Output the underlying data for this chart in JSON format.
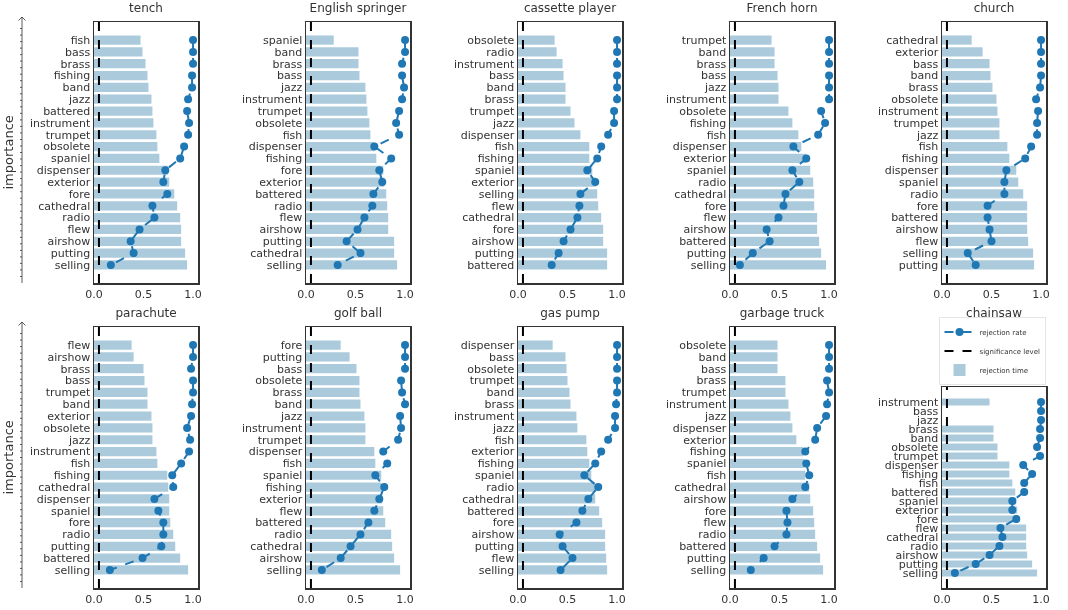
{
  "chart_data": [
    {
      "type": "bar",
      "orientation": "horizontal",
      "title": "tench",
      "ylabel": "importance",
      "xlim": [
        0,
        1.05
      ],
      "xticks": [
        {
          "value": 0,
          "label": "0.0"
        },
        {
          "value": 0.5,
          "label": "0.5"
        },
        {
          "value": 1,
          "label": "1.0"
        }
      ],
      "categories": [
        "fish",
        "bass",
        "brass",
        "fishing",
        "band",
        "jazz",
        "battered",
        "instrument",
        "trumpet",
        "obsolete",
        "spaniel",
        "dispenser",
        "exterior",
        "fore",
        "cathedral",
        "radio",
        "flew",
        "airshow",
        "putting",
        "selling"
      ],
      "ref_lines": [
        {
          "axis": "x",
          "value": 0.05,
          "color": "#000000",
          "line_style": "dashed"
        }
      ],
      "series": [
        {
          "color": "#abcbdd",
          "values": [
            0.47,
            0.49,
            0.52,
            0.54,
            0.55,
            0.58,
            0.59,
            0.6,
            0.63,
            0.64,
            0.66,
            0.75,
            0.76,
            0.81,
            0.84,
            0.87,
            0.88,
            0.88,
            0.92,
            0.94
          ]
        },
        {
          "type": "line",
          "color": "#1f77b4",
          "marker": "circle",
          "line_style": "dashed",
          "values": [
            1.0,
            1.0,
            1.0,
            0.99,
            0.99,
            0.95,
            0.94,
            0.96,
            0.95,
            0.91,
            0.87,
            0.72,
            0.7,
            0.74,
            0.59,
            0.61,
            0.46,
            0.37,
            0.4,
            0.17
          ]
        }
      ]
    },
    {
      "type": "bar",
      "orientation": "horizontal",
      "title": "English springer",
      "xlim": [
        0,
        1.05
      ],
      "xticks": [
        {
          "value": 0,
          "label": "0.0"
        },
        {
          "value": 0.5,
          "label": "0.5"
        },
        {
          "value": 1,
          "label": "1.0"
        }
      ],
      "categories": [
        "spaniel",
        "band",
        "brass",
        "bass",
        "jazz",
        "instrument",
        "trumpet",
        "obsolete",
        "fish",
        "dispenser",
        "fishing",
        "fore",
        "exterior",
        "battered",
        "radio",
        "flew",
        "airshow",
        "putting",
        "cathedral",
        "selling"
      ],
      "ref_lines": [
        {
          "axis": "x",
          "value": 0.05,
          "color": "#000000",
          "line_style": "dashed"
        }
      ],
      "series": [
        {
          "color": "#abcbdd",
          "values": [
            0.28,
            0.53,
            0.53,
            0.54,
            0.6,
            0.61,
            0.62,
            0.64,
            0.65,
            0.69,
            0.71,
            0.78,
            0.79,
            0.81,
            0.82,
            0.83,
            0.83,
            0.89,
            0.89,
            0.92
          ]
        },
        {
          "type": "line",
          "color": "#1f77b4",
          "marker": "circle",
          "line_style": "dashed",
          "values": [
            1.0,
            1.0,
            0.97,
            0.97,
            0.99,
            0.97,
            0.94,
            0.91,
            0.94,
            0.69,
            0.86,
            0.74,
            0.77,
            0.68,
            0.67,
            0.59,
            0.52,
            0.41,
            0.55,
            0.32
          ]
        }
      ]
    },
    {
      "type": "bar",
      "orientation": "horizontal",
      "title": "cassette player",
      "xlim": [
        0,
        1.05
      ],
      "xticks": [
        {
          "value": 0,
          "label": "0.0"
        },
        {
          "value": 0.5,
          "label": "0.5"
        },
        {
          "value": 1,
          "label": "1.0"
        }
      ],
      "categories": [
        "obsolete",
        "radio",
        "instrument",
        "bass",
        "band",
        "brass",
        "trumpet",
        "jazz",
        "dispenser",
        "fish",
        "fishing",
        "spaniel",
        "exterior",
        "selling",
        "flew",
        "cathedral",
        "fore",
        "airshow",
        "putting",
        "battered"
      ],
      "ref_lines": [
        {
          "axis": "x",
          "value": 0.05,
          "color": "#000000",
          "line_style": "dashed"
        }
      ],
      "series": [
        {
          "color": "#abcbdd",
          "values": [
            0.37,
            0.39,
            0.45,
            0.46,
            0.48,
            0.48,
            0.53,
            0.57,
            0.63,
            0.72,
            0.72,
            0.75,
            0.79,
            0.8,
            0.81,
            0.84,
            0.86,
            0.86,
            0.9,
            0.9
          ]
        },
        {
          "type": "line",
          "color": "#1f77b4",
          "marker": "circle",
          "line_style": "dashed",
          "values": [
            1.0,
            1.0,
            1.0,
            1.0,
            1.0,
            1.0,
            0.97,
            0.97,
            0.91,
            0.84,
            0.8,
            0.7,
            0.78,
            0.63,
            0.62,
            0.6,
            0.53,
            0.46,
            0.41,
            0.34
          ]
        }
      ]
    },
    {
      "type": "bar",
      "orientation": "horizontal",
      "title": "French horn",
      "xlim": [
        0,
        1.05
      ],
      "xticks": [
        {
          "value": 0,
          "label": "0.0"
        },
        {
          "value": 0.5,
          "label": "0.5"
        },
        {
          "value": 1,
          "label": "1.0"
        }
      ],
      "categories": [
        "trumpet",
        "band",
        "brass",
        "bass",
        "jazz",
        "instrument",
        "obsolete",
        "fishing",
        "fish",
        "dispenser",
        "exterior",
        "spaniel",
        "radio",
        "cathedral",
        "fore",
        "flew",
        "airshow",
        "battered",
        "putting",
        "selling"
      ],
      "ref_lines": [
        {
          "axis": "x",
          "value": 0.05,
          "color": "#000000",
          "line_style": "dashed"
        }
      ],
      "series": [
        {
          "color": "#abcbdd",
          "values": [
            0.42,
            0.45,
            0.45,
            0.48,
            0.49,
            0.49,
            0.59,
            0.63,
            0.69,
            0.72,
            0.77,
            0.81,
            0.84,
            0.85,
            0.85,
            0.88,
            0.88,
            0.9,
            0.92,
            0.97
          ]
        },
        {
          "type": "line",
          "color": "#1f77b4",
          "marker": "circle",
          "line_style": "dashed",
          "values": [
            1.0,
            1.0,
            1.0,
            1.0,
            1.0,
            1.0,
            0.92,
            0.96,
            0.89,
            0.64,
            0.77,
            0.63,
            0.7,
            0.56,
            0.54,
            0.49,
            0.37,
            0.4,
            0.23,
            0.1
          ]
        }
      ]
    },
    {
      "type": "bar",
      "orientation": "horizontal",
      "title": "church",
      "xlim": [
        0,
        1.05
      ],
      "xticks": [
        {
          "value": 0,
          "label": "0.0"
        },
        {
          "value": 0.5,
          "label": "0.5"
        },
        {
          "value": 1,
          "label": "1.0"
        }
      ],
      "categories": [
        "cathedral",
        "exterior",
        "bass",
        "band",
        "brass",
        "obsolete",
        "instrument",
        "trumpet",
        "jazz",
        "fish",
        "fishing",
        "dispenser",
        "spaniel",
        "radio",
        "fore",
        "battered",
        "airshow",
        "flew",
        "selling",
        "putting"
      ],
      "ref_lines": [
        {
          "axis": "x",
          "value": 0.05,
          "color": "#000000",
          "line_style": "dashed"
        }
      ],
      "series": [
        {
          "color": "#abcbdd",
          "values": [
            0.3,
            0.41,
            0.48,
            0.49,
            0.51,
            0.55,
            0.56,
            0.58,
            0.58,
            0.66,
            0.68,
            0.75,
            0.77,
            0.82,
            0.86,
            0.86,
            0.86,
            0.87,
            0.92,
            0.93
          ]
        },
        {
          "type": "line",
          "color": "#1f77b4",
          "marker": "circle",
          "line_style": "dashed",
          "values": [
            1.0,
            1.0,
            1.0,
            1.0,
            0.99,
            0.95,
            0.97,
            0.96,
            0.96,
            0.9,
            0.84,
            0.65,
            0.63,
            0.63,
            0.46,
            0.46,
            0.48,
            0.5,
            0.26,
            0.34
          ]
        }
      ]
    },
    {
      "type": "bar",
      "orientation": "horizontal",
      "title": "parachute",
      "ylabel": "importance",
      "xlim": [
        0,
        1.05
      ],
      "xticks": [
        {
          "value": 0,
          "label": "0.0"
        },
        {
          "value": 0.5,
          "label": "0.5"
        },
        {
          "value": 1,
          "label": "1.0"
        }
      ],
      "categories": [
        "flew",
        "airshow",
        "brass",
        "bass",
        "trumpet",
        "band",
        "exterior",
        "obsolete",
        "jazz",
        "instrument",
        "fish",
        "fishing",
        "cathedral",
        "dispenser",
        "spaniel",
        "fore",
        "radio",
        "putting",
        "battered",
        "selling"
      ],
      "ref_lines": [
        {
          "axis": "x",
          "value": 0.05,
          "color": "#000000",
          "line_style": "dashed"
        }
      ],
      "series": [
        {
          "color": "#abcbdd",
          "values": [
            0.38,
            0.4,
            0.5,
            0.51,
            0.54,
            0.54,
            0.58,
            0.59,
            0.59,
            0.63,
            0.64,
            0.74,
            0.75,
            0.76,
            0.76,
            0.77,
            0.8,
            0.82,
            0.87,
            0.95
          ]
        },
        {
          "type": "line",
          "color": "#1f77b4",
          "marker": "circle",
          "line_style": "dashed",
          "values": [
            1.0,
            1.0,
            0.98,
            1.0,
            1.0,
            0.99,
            0.98,
            0.94,
            0.97,
            0.96,
            0.88,
            0.79,
            0.8,
            0.61,
            0.65,
            0.7,
            0.7,
            0.68,
            0.49,
            0.16
          ]
        }
      ]
    },
    {
      "type": "bar",
      "orientation": "horizontal",
      "title": "golf ball",
      "xlim": [
        0,
        1.05
      ],
      "xticks": [
        {
          "value": 0,
          "label": "0.0"
        },
        {
          "value": 0.5,
          "label": "0.5"
        },
        {
          "value": 1,
          "label": "1.0"
        }
      ],
      "categories": [
        "fore",
        "putting",
        "bass",
        "obsolete",
        "brass",
        "band",
        "jazz",
        "instrument",
        "trumpet",
        "dispenser",
        "fish",
        "spaniel",
        "fishing",
        "exterior",
        "flew",
        "battered",
        "radio",
        "cathedral",
        "airshow",
        "selling"
      ],
      "ref_lines": [
        {
          "axis": "x",
          "value": 0.05,
          "color": "#000000",
          "line_style": "dashed"
        }
      ],
      "series": [
        {
          "color": "#abcbdd",
          "values": [
            0.35,
            0.44,
            0.51,
            0.54,
            0.54,
            0.55,
            0.59,
            0.6,
            0.6,
            0.69,
            0.7,
            0.76,
            0.76,
            0.77,
            0.78,
            0.8,
            0.86,
            0.87,
            0.89,
            0.95
          ]
        },
        {
          "type": "line",
          "color": "#1f77b4",
          "marker": "circle",
          "line_style": "dashed",
          "values": [
            1.0,
            1.0,
            1.0,
            0.96,
            0.97,
            1.0,
            0.95,
            0.96,
            0.93,
            0.78,
            0.82,
            0.7,
            0.79,
            0.74,
            0.69,
            0.63,
            0.55,
            0.45,
            0.35,
            0.16
          ]
        }
      ]
    },
    {
      "type": "bar",
      "orientation": "horizontal",
      "title": "gas pump",
      "xlim": [
        0,
        1.05
      ],
      "xticks": [
        {
          "value": 0,
          "label": "0.0"
        },
        {
          "value": 0.5,
          "label": "0.5"
        },
        {
          "value": 1,
          "label": "1.0"
        }
      ],
      "categories": [
        "dispenser",
        "bass",
        "obsolete",
        "trumpet",
        "band",
        "brass",
        "instrument",
        "jazz",
        "fish",
        "exterior",
        "fishing",
        "spaniel",
        "radio",
        "cathedral",
        "battered",
        "fore",
        "airshow",
        "putting",
        "flew",
        "selling"
      ],
      "ref_lines": [
        {
          "axis": "x",
          "value": 0.05,
          "color": "#000000",
          "line_style": "dashed"
        }
      ],
      "series": [
        {
          "color": "#abcbdd",
          "values": [
            0.35,
            0.48,
            0.49,
            0.5,
            0.52,
            0.53,
            0.59,
            0.6,
            0.69,
            0.7,
            0.72,
            0.74,
            0.78,
            0.78,
            0.82,
            0.85,
            0.88,
            0.88,
            0.89,
            0.9
          ]
        },
        {
          "type": "line",
          "color": "#1f77b4",
          "marker": "circle",
          "line_style": "dashed",
          "values": [
            1.0,
            1.0,
            1.0,
            1.0,
            1.0,
            0.99,
            0.98,
            0.98,
            0.91,
            0.84,
            0.78,
            0.67,
            0.81,
            0.71,
            0.65,
            0.59,
            0.42,
            0.45,
            0.55,
            0.43
          ]
        }
      ]
    },
    {
      "type": "bar",
      "orientation": "horizontal",
      "title": "garbage truck",
      "xlim": [
        0,
        1.05
      ],
      "xticks": [
        {
          "value": 0,
          "label": "0.0"
        },
        {
          "value": 0.5,
          "label": "0.5"
        },
        {
          "value": 1,
          "label": "1.0"
        }
      ],
      "categories": [
        "obsolete",
        "band",
        "bass",
        "brass",
        "trumpet",
        "instrument",
        "jazz",
        "dispenser",
        "exterior",
        "fishing",
        "spaniel",
        "fish",
        "cathedral",
        "airshow",
        "fore",
        "flew",
        "radio",
        "battered",
        "putting",
        "selling"
      ],
      "ref_lines": [
        {
          "axis": "x",
          "value": 0.05,
          "color": "#000000",
          "line_style": "dashed"
        }
      ],
      "series": [
        {
          "color": "#abcbdd",
          "values": [
            0.48,
            0.48,
            0.48,
            0.56,
            0.56,
            0.59,
            0.61,
            0.63,
            0.67,
            0.74,
            0.75,
            0.76,
            0.8,
            0.81,
            0.84,
            0.85,
            0.86,
            0.88,
            0.91,
            0.94
          ]
        },
        {
          "type": "line",
          "color": "#1f77b4",
          "marker": "circle",
          "line_style": "dashed",
          "values": [
            1.0,
            1.0,
            1.0,
            0.98,
            1.0,
            0.98,
            0.97,
            0.88,
            0.86,
            0.76,
            0.77,
            0.8,
            0.76,
            0.63,
            0.57,
            0.58,
            0.57,
            0.45,
            0.34,
            0.21
          ]
        }
      ]
    },
    {
      "type": "bar",
      "orientation": "horizontal",
      "title": "chainsaw",
      "legend": "top",
      "xlim": [
        0,
        1.05
      ],
      "xticks": [
        {
          "value": 0,
          "label": "0.0"
        },
        {
          "value": 0.5,
          "label": "0.5"
        },
        {
          "value": 1,
          "label": "1.0"
        }
      ],
      "categories": [
        "instrument",
        "bass",
        "jazz",
        "brass",
        "band",
        "obsolete",
        "trumpet",
        "dispenser",
        "fishing",
        "fish",
        "battered",
        "spaniel",
        "exterior",
        "fore",
        "flew",
        "cathedral",
        "radio",
        "airshow",
        "putting",
        "selling"
      ],
      "ref_lines": [
        {
          "axis": "x",
          "value": 0.05,
          "label": "significance level",
          "color": "#000000",
          "line_style": "dashed"
        }
      ],
      "series": [
        {
          "name": "rejection time",
          "color": "#abcbdd",
          "values": [
            0.48,
            null,
            null,
            0.52,
            0.52,
            0.56,
            0.56,
            0.68,
            0.68,
            0.71,
            0.74,
            0.75,
            0.76,
            0.77,
            0.85,
            0.85,
            0.85,
            0.86,
            0.91,
            0.96
          ]
        },
        {
          "type": "line",
          "name": "rejection rate",
          "color": "#1f77b4",
          "marker": "circle",
          "line_style": "dashed",
          "values": [
            1.0,
            1.0,
            1.0,
            0.99,
            0.99,
            0.96,
            0.99,
            0.82,
            0.91,
            0.83,
            0.83,
            0.71,
            0.71,
            0.75,
            0.59,
            0.61,
            0.58,
            0.48,
            0.34,
            0.13
          ]
        }
      ]
    }
  ]
}
